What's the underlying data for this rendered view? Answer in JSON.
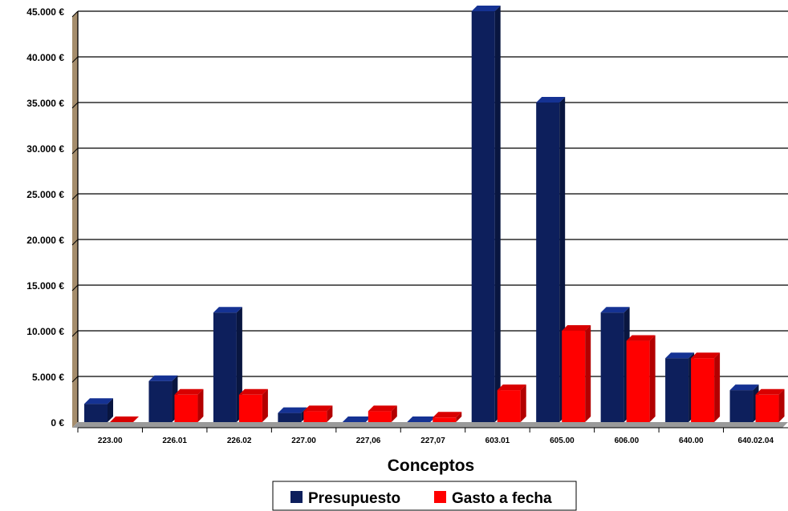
{
  "chart_data": {
    "type": "bar",
    "title": "",
    "xlabel": "Conceptos",
    "ylabel": "",
    "categories": [
      "223.00",
      "226.01",
      "226.02",
      "227.00",
      "227,06",
      "227,07",
      "603.01",
      "605.00",
      "606.00",
      "640.00",
      "640.02.04"
    ],
    "series": [
      {
        "name": "Presupuesto",
        "color": "#0d1f5c",
        "values": [
          2000,
          4500,
          12000,
          1000,
          0,
          0,
          45000,
          35000,
          12000,
          7000,
          3500
        ]
      },
      {
        "name": "Gasto a fecha",
        "color": "#ff0000",
        "values": [
          0,
          3000,
          3000,
          1200,
          1200,
          500,
          3500,
          10000,
          8900,
          7000,
          3000
        ]
      }
    ],
    "ylim": [
      0,
      45000
    ],
    "yticks": [
      "0 €",
      "5.000 €",
      "10.000 €",
      "15.000 €",
      "20.000 €",
      "25.000 €",
      "30.000 €",
      "35.000 €",
      "40.000 €",
      "45.000 €"
    ],
    "grid": true,
    "legend_position": "bottom"
  }
}
